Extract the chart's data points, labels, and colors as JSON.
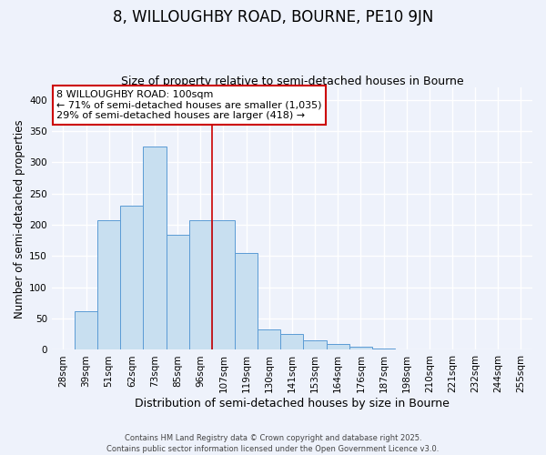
{
  "title": "8, WILLOUGHBY ROAD, BOURNE, PE10 9JN",
  "subtitle": "Size of property relative to semi-detached houses in Bourne",
  "xlabel": "Distribution of semi-detached houses by size in Bourne",
  "ylabel": "Number of semi-detached properties",
  "categories": [
    "28sqm",
    "39sqm",
    "51sqm",
    "62sqm",
    "73sqm",
    "85sqm",
    "96sqm",
    "107sqm",
    "119sqm",
    "130sqm",
    "141sqm",
    "153sqm",
    "164sqm",
    "176sqm",
    "187sqm",
    "198sqm",
    "210sqm",
    "221sqm",
    "232sqm",
    "244sqm",
    "255sqm"
  ],
  "values": [
    0,
    62,
    208,
    230,
    325,
    184,
    208,
    208,
    155,
    32,
    25,
    15,
    10,
    5,
    2,
    1,
    1,
    0,
    0,
    0,
    0
  ],
  "bar_color": "#c8dff0",
  "bar_edge_color": "#5b9bd5",
  "vline_color": "#cc0000",
  "annotation_title": "8 WILLOUGHBY ROAD: 100sqm",
  "annotation_line1": "← 71% of semi-detached houses are smaller (1,035)",
  "annotation_line2": "29% of semi-detached houses are larger (418) →",
  "annotation_box_color": "#ffffff",
  "annotation_box_edge": "#cc0000",
  "ylim": [
    0,
    420
  ],
  "yticks": [
    0,
    50,
    100,
    150,
    200,
    250,
    300,
    350,
    400
  ],
  "background_color": "#eef2fb",
  "grid_color": "#ffffff",
  "footer_line1": "Contains HM Land Registry data © Crown copyright and database right 2025.",
  "footer_line2": "Contains public sector information licensed under the Open Government Licence v3.0.",
  "title_fontsize": 12,
  "subtitle_fontsize": 9,
  "xlabel_fontsize": 9,
  "ylabel_fontsize": 8.5,
  "tick_fontsize": 7.5
}
